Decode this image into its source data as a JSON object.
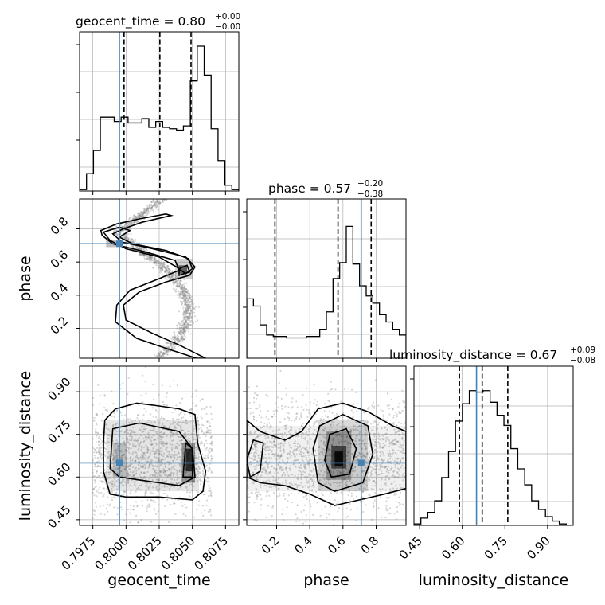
{
  "chart_data": {
    "type": "corner",
    "parameters": [
      "geocent_time",
      "phase",
      "luminosity_distance"
    ],
    "ranges": {
      "geocent_time": [
        0.7965,
        0.8085
      ],
      "phase": [
        0.02,
        0.98
      ],
      "luminosity_distance": [
        0.43,
        0.99
      ]
    },
    "truth": {
      "geocent_time": 0.7995,
      "phase": 0.71,
      "luminosity_distance": 0.65
    },
    "titles": {
      "geocent_time": {
        "name": "geocent_time",
        "median": "0.80",
        "plus": "+0.00",
        "minus": "−0.00"
      },
      "phase": {
        "name": "phase",
        "median": "0.57",
        "plus": "+0.20",
        "minus": "−0.38"
      },
      "luminosity_distance": {
        "name": "luminosity_distance",
        "median": "0.67",
        "plus": "+0.09",
        "minus": "−0.08"
      }
    },
    "quantiles": {
      "geocent_time": [
        0.79985,
        0.80255,
        0.8049
      ],
      "phase": [
        0.19,
        0.57,
        0.77
      ],
      "luminosity_distance": [
        0.59,
        0.67,
        0.76
      ]
    },
    "ticks": {
      "geocent_time": [
        "0.7975",
        "0.8000",
        "0.8025",
        "0.8050",
        "0.8075"
      ],
      "phase": [
        "0.2",
        "0.4",
        "0.6",
        "0.8"
      ],
      "luminosity_distance": [
        "0.45",
        "0.60",
        "0.75",
        "0.90"
      ]
    },
    "histograms": {
      "geocent_time": [
        0.01,
        0.12,
        0.28,
        0.51,
        0.51,
        0.48,
        0.51,
        0.47,
        0.47,
        0.5,
        0.44,
        0.48,
        0.44,
        0.43,
        0.42,
        0.45,
        0.76,
        1.0,
        0.8,
        0.43,
        0.21,
        0.04,
        0.01
      ],
      "phase": [
        0.41,
        0.36,
        0.23,
        0.16,
        0.15,
        0.15,
        0.14,
        0.14,
        0.14,
        0.15,
        0.15,
        0.2,
        0.32,
        0.55,
        0.66,
        0.91,
        0.65,
        0.5,
        0.43,
        0.38,
        0.3,
        0.25,
        0.2,
        0.16
      ],
      "luminosity_distance": [
        0.01,
        0.05,
        0.09,
        0.17,
        0.33,
        0.51,
        0.72,
        0.84,
        0.93,
        0.92,
        0.93,
        0.85,
        0.76,
        0.69,
        0.53,
        0.39,
        0.28,
        0.17,
        0.11,
        0.06,
        0.03,
        0.01,
        0.0
      ]
    }
  }
}
